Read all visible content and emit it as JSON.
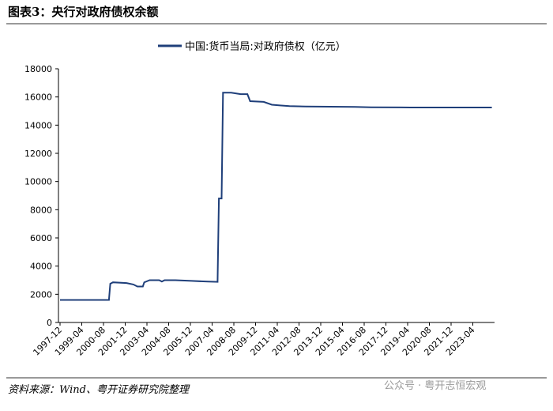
{
  "chart_data": {
    "type": "line",
    "title": "图表3：央行对政府债权余额",
    "source": "资料来源：Wind、粤开证券研究院整理",
    "watermark": "公众号 · 粤开志恒宏观",
    "x": [
      "1997-12",
      "2000-12",
      "2001-01",
      "2001-03",
      "2002-01",
      "2002-06",
      "2002-09",
      "2003-01",
      "2003-02",
      "2003-06",
      "2004-01",
      "2004-03",
      "2004-05",
      "2005-01",
      "2006-01",
      "2007-01",
      "2007-08",
      "2007-09",
      "2007-11",
      "2007-12",
      "2008-06",
      "2009-01",
      "2009-06",
      "2009-08",
      "2010-06",
      "2010-12",
      "2011-06",
      "2012-01",
      "2013-01",
      "2016-01",
      "2017-01",
      "2019-06",
      "2024-06"
    ],
    "series": [
      {
        "name": "中国:货币当局:对政府债权（亿元）",
        "color": "#1f3f7a",
        "values": [
          1600,
          1600,
          2750,
          2850,
          2800,
          2700,
          2550,
          2550,
          2850,
          3000,
          3000,
          2900,
          3000,
          3000,
          2950,
          2900,
          2880,
          8800,
          8800,
          16300,
          16300,
          16200,
          16200,
          15700,
          15650,
          15450,
          15400,
          15350,
          15320,
          15300,
          15270,
          15250,
          15250
        ]
      }
    ],
    "xlim": [
      "1997-12",
      "2024-08"
    ],
    "xticks": [
      "1997-12",
      "1999-04",
      "2000-08",
      "2001-12",
      "2003-04",
      "2004-08",
      "2005-12",
      "2007-04",
      "2008-08",
      "2009-12",
      "2011-04",
      "2012-08",
      "2013-12",
      "2015-04",
      "2016-08",
      "2017-12",
      "2019-04",
      "2020-08",
      "2021-12",
      "2023-04"
    ],
    "ylim": [
      0,
      18000
    ],
    "yticks": [
      0,
      2000,
      4000,
      6000,
      8000,
      10000,
      12000,
      14000,
      16000,
      18000
    ],
    "grid": false
  }
}
